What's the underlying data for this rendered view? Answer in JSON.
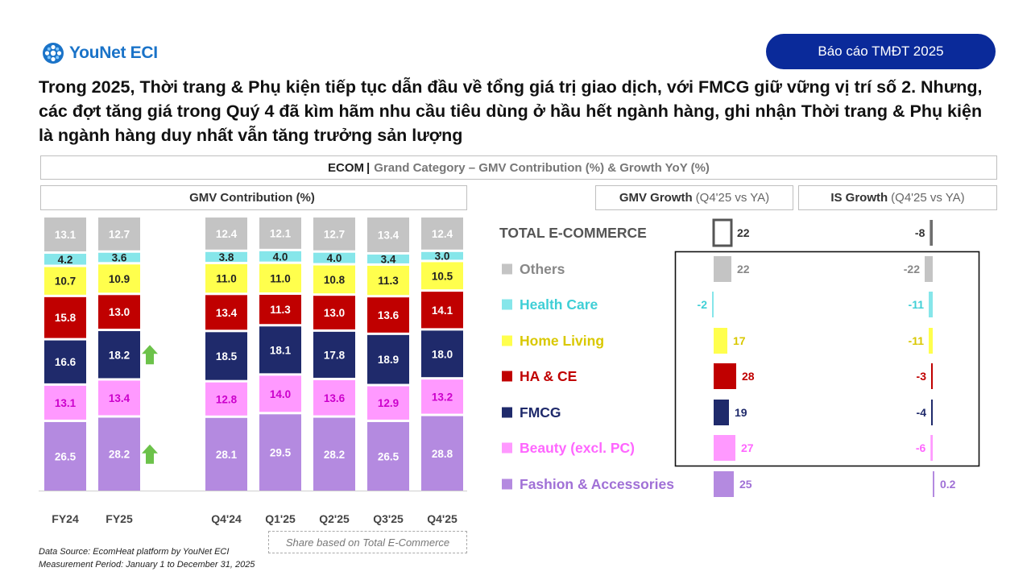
{
  "brand": {
    "name": "YouNet ECI"
  },
  "report_badge": "Báo cáo TMĐT 2025",
  "headline": "Trong 2025, Thời trang & Phụ kiện tiếp tục dẫn đầu về tổng giá trị giao dịch, với FMCG giữ vững vị trí số 2. Nhưng, các đợt tăng giá trong Quý 4 đã kìm hãm nhu cầu tiêu dùng ở hầu hết ngành hàng, ghi nhận Thời trang & Phụ kiện là ngành hàng duy nhất vẫn tăng trưởng sản lượng",
  "chart_title": {
    "strong": "ECOM",
    "separator": "|",
    "rest": "Grand Category – GMV Contribution (%) & Growth YoY (%)"
  },
  "panel_headers": {
    "contribution": "GMV Contribution (%)",
    "gmv_growth": {
      "strong": "GMV Growth",
      "light": "(Q4'25 vs YA)"
    },
    "is_growth": {
      "strong": "IS Growth",
      "light": "(Q4'25 vs YA)"
    }
  },
  "share_note": "Share based on Total E-Commerce",
  "footnotes": {
    "source": "Data Source: EcomHeat platform by YouNet ECI",
    "period": "Measurement Period: January 1 to December 31, 2025"
  },
  "colors": {
    "brand_blue": "#0a2a9a",
    "others": "#c4c4c4",
    "health_care": "#86e6ea",
    "home_living": "#ffff4d",
    "ha_ce": "#c00000",
    "fmcg": "#1f2a6b",
    "beauty": "#ff99ff",
    "fashion": "#b48ae0",
    "up_arrow": "#6cc24a"
  },
  "chart_data": [
    {
      "type": "bar",
      "stacked": true,
      "title": "GMV Contribution (%)",
      "categories": [
        "FY24",
        "FY25",
        "Q4'24",
        "Q1'25",
        "Q2'25",
        "Q3'25",
        "Q4'25"
      ],
      "series": [
        {
          "name": "Fashion & Accessories",
          "values": [
            26.5,
            28.2,
            28.1,
            29.5,
            28.2,
            26.5,
            28.8
          ]
        },
        {
          "name": "Beauty (excl. PC)",
          "values": [
            13.1,
            13.4,
            12.8,
            14.0,
            13.6,
            12.9,
            13.2
          ]
        },
        {
          "name": "FMCG",
          "values": [
            16.6,
            18.2,
            18.5,
            18.1,
            17.8,
            18.9,
            18.0
          ]
        },
        {
          "name": "HA & CE",
          "values": [
            15.8,
            13.0,
            13.4,
            11.3,
            13.0,
            13.6,
            14.1
          ]
        },
        {
          "name": "Home Living",
          "values": [
            10.7,
            10.9,
            11.0,
            11.0,
            10.8,
            11.3,
            10.5
          ]
        },
        {
          "name": "Health Care",
          "values": [
            4.2,
            3.6,
            3.8,
            4.0,
            4.0,
            3.4,
            3.0
          ]
        },
        {
          "name": "Others",
          "values": [
            13.1,
            12.7,
            12.4,
            12.1,
            12.7,
            13.4,
            12.4
          ]
        }
      ],
      "up_arrows": [
        {
          "category": "FY25",
          "series": "FMCG"
        },
        {
          "category": "FY25",
          "series": "Fashion & Accessories"
        }
      ],
      "ylim": [
        0,
        100
      ]
    },
    {
      "type": "bar",
      "orientation": "horizontal",
      "title": "GMV Growth (Q4'25 vs YA)",
      "categories": [
        "TOTAL E-COMMERCE",
        "Others",
        "Health Care",
        "Home Living",
        "HA & CE",
        "FMCG",
        "Beauty (excl. PC)",
        "Fashion & Accessories"
      ],
      "values": [
        22,
        22,
        -2,
        17,
        28,
        19,
        27,
        25
      ],
      "labels": [
        "22",
        "22",
        "-2",
        "17",
        "28",
        "19",
        "27",
        "25"
      ]
    },
    {
      "type": "bar",
      "orientation": "horizontal",
      "title": "IS Growth (Q4'25 vs YA)",
      "categories": [
        "TOTAL E-COMMERCE",
        "Others",
        "Health Care",
        "Home Living",
        "HA & CE",
        "FMCG",
        "Beauty (excl. PC)",
        "Fashion & Accessories"
      ],
      "values": [
        -8,
        -22,
        -11,
        -11,
        -3,
        -4,
        -6,
        0.2
      ],
      "labels": [
        "-8",
        "-22",
        "-11",
        "-11",
        "-3",
        "-4",
        "-6",
        "0.2"
      ]
    }
  ]
}
